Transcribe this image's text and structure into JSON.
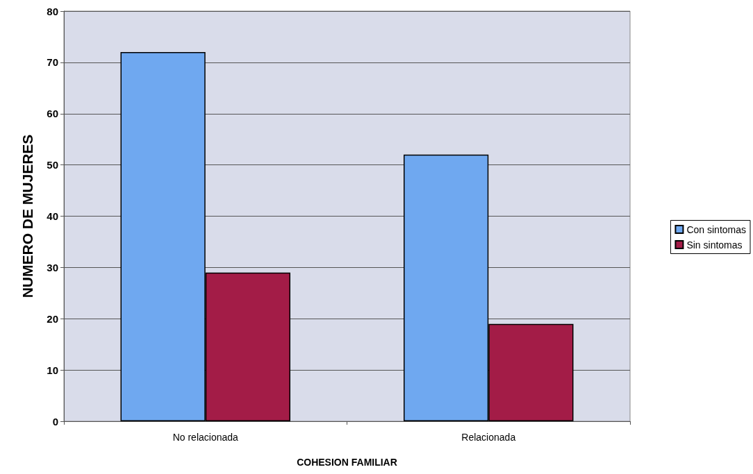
{
  "chart_data": {
    "type": "bar",
    "xlabel": "COHESION FAMILIAR",
    "ylabel": "NUMERO DE MUJERES",
    "categories": [
      "No relacionada",
      "Relacionada"
    ],
    "series": [
      {
        "name": "Con sintomas",
        "color": "#6fa8f0",
        "values": [
          72,
          52
        ]
      },
      {
        "name": "Sin sintomas",
        "color": "#a31c47",
        "values": [
          29,
          19
        ]
      }
    ],
    "ylim": [
      0,
      80
    ],
    "yticks": [
      0,
      10,
      20,
      30,
      40,
      50,
      60,
      70,
      80
    ],
    "grid": "y",
    "legend": "right"
  }
}
